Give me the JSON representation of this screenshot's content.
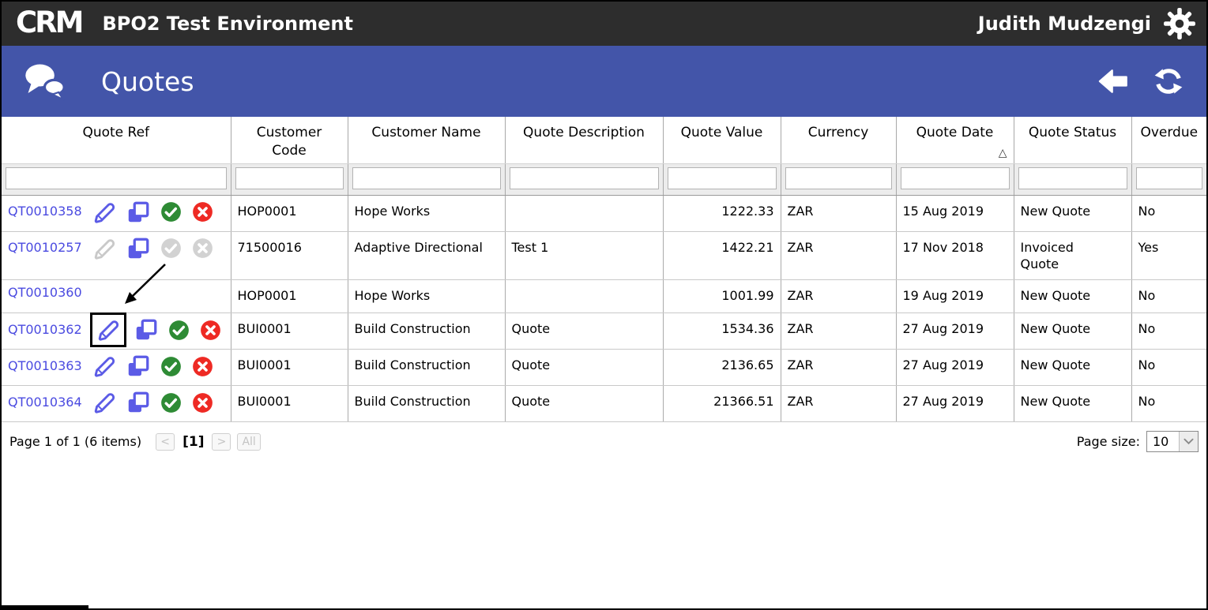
{
  "top_bar": {
    "logo_text": "CRM",
    "environment_title": "BPO2 Test Environment",
    "user_name": "Judith Mudzengi"
  },
  "toolbar": {
    "title": "Quotes"
  },
  "colors": {
    "top_bar_bg": "#2d2d2d",
    "toolbar_bg": "#4355a9",
    "link_blue": "#4a4ae0",
    "icon_blue": "#5b5be6",
    "approve_green": "#2e8b35",
    "reject_red": "#ee2a24",
    "disabled_gray": "#c9c9c9"
  },
  "table": {
    "columns": [
      "Quote Ref",
      "Customer Code",
      "Customer Name",
      "Quote Description",
      "Quote Value",
      "Currency",
      "Quote Date",
      "Quote Status",
      "Overdue"
    ],
    "sort": {
      "column": "Quote Date",
      "direction": "ascending",
      "indicator": "△"
    },
    "filter_values": [
      "",
      "",
      "",
      "",
      "",
      "",
      "",
      "",
      ""
    ],
    "rows": [
      {
        "ref": "QT0010358",
        "edit": "enabled",
        "copy": "enabled",
        "approve": "enabled",
        "reject": "enabled",
        "edit_highlight": false,
        "customer_code": "HOP0001",
        "customer_name": "Hope Works",
        "description": "",
        "value": "1222.33",
        "currency": "ZAR",
        "date": "15 Aug 2019",
        "status": "New Quote",
        "overdue": "No"
      },
      {
        "ref": "QT0010257",
        "edit": "disabled",
        "copy": "enabled",
        "approve": "disabled",
        "reject": "disabled",
        "edit_highlight": false,
        "customer_code": "71500016",
        "customer_name": "Adaptive Directional",
        "description": "Test 1",
        "value": "1422.21",
        "currency": "ZAR",
        "date": "17 Nov 2018",
        "status": "Invoiced Quote",
        "overdue": "Yes"
      },
      {
        "ref": "QT0010360",
        "edit": "hidden",
        "copy": "hidden",
        "approve": "hidden",
        "reject": "hidden",
        "edit_highlight": false,
        "customer_code": "HOP0001",
        "customer_name": "Hope Works",
        "description": "",
        "value": "1001.99",
        "currency": "ZAR",
        "date": "19 Aug 2019",
        "status": "New Quote",
        "overdue": "No"
      },
      {
        "ref": "QT0010362",
        "edit": "enabled",
        "copy": "enabled",
        "approve": "enabled",
        "reject": "enabled",
        "edit_highlight": true,
        "customer_code": "BUI0001",
        "customer_name": "Build Construction",
        "description": "Quote",
        "value": "1534.36",
        "currency": "ZAR",
        "date": "27 Aug 2019",
        "status": "New Quote",
        "overdue": "No"
      },
      {
        "ref": "QT0010363",
        "edit": "enabled",
        "copy": "enabled",
        "approve": "enabled",
        "reject": "enabled",
        "edit_highlight": false,
        "customer_code": "BUI0001",
        "customer_name": "Build Construction",
        "description": "Quote",
        "value": "2136.65",
        "currency": "ZAR",
        "date": "27 Aug 2019",
        "status": "New Quote",
        "overdue": "No"
      },
      {
        "ref": "QT0010364",
        "edit": "enabled",
        "copy": "enabled",
        "approve": "enabled",
        "reject": "enabled",
        "edit_highlight": false,
        "customer_code": "BUI0001",
        "customer_name": "Build Construction",
        "description": "Quote",
        "value": "21366.51",
        "currency": "ZAR",
        "date": "27 Aug 2019",
        "status": "New Quote",
        "overdue": "No"
      }
    ]
  },
  "pagination": {
    "summary": "Page 1 of 1 (6 items)",
    "prev_label": "<",
    "current_page_label": "[1]",
    "next_label": ">",
    "all_label": "All"
  },
  "page_size": {
    "label": "Page size:",
    "value": "10"
  }
}
